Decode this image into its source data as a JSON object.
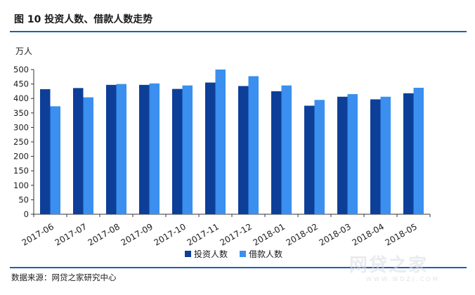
{
  "header": {
    "title": "图 10   投资人数、借款人数走势"
  },
  "footer": {
    "source": "数据来源：网贷之家研究中心"
  },
  "watermark": {
    "text": "网贷之家",
    "url": "WWW.WDZJ.COM"
  },
  "colors": {
    "rule": "#1f5fb0",
    "investors": "#0d3f99",
    "borrowers": "#3a8fef",
    "axis": "#333333"
  },
  "chart_data": {
    "type": "bar",
    "title": "",
    "xlabel": "",
    "ylabel": "万人",
    "ylim": [
      0,
      500
    ],
    "yticks": [
      0,
      50,
      100,
      150,
      200,
      250,
      300,
      350,
      400,
      450,
      500
    ],
    "grid": false,
    "legend_position": "bottom",
    "categories": [
      "2017-06",
      "2017-07",
      "2017-08",
      "2017-09",
      "2017-10",
      "2017-11",
      "2017-12",
      "2018-01",
      "2018-02",
      "2018-03",
      "2018-04",
      "2018-05"
    ],
    "series": [
      {
        "name": "投资人数",
        "color": "#0d3f99",
        "values": [
          432,
          436,
          447,
          447,
          433,
          455,
          443,
          425,
          375,
          406,
          397,
          418
        ]
      },
      {
        "name": "借款人数",
        "color": "#3a8fef",
        "values": [
          373,
          404,
          450,
          452,
          445,
          500,
          477,
          445,
          395,
          415,
          406,
          437
        ]
      }
    ]
  }
}
